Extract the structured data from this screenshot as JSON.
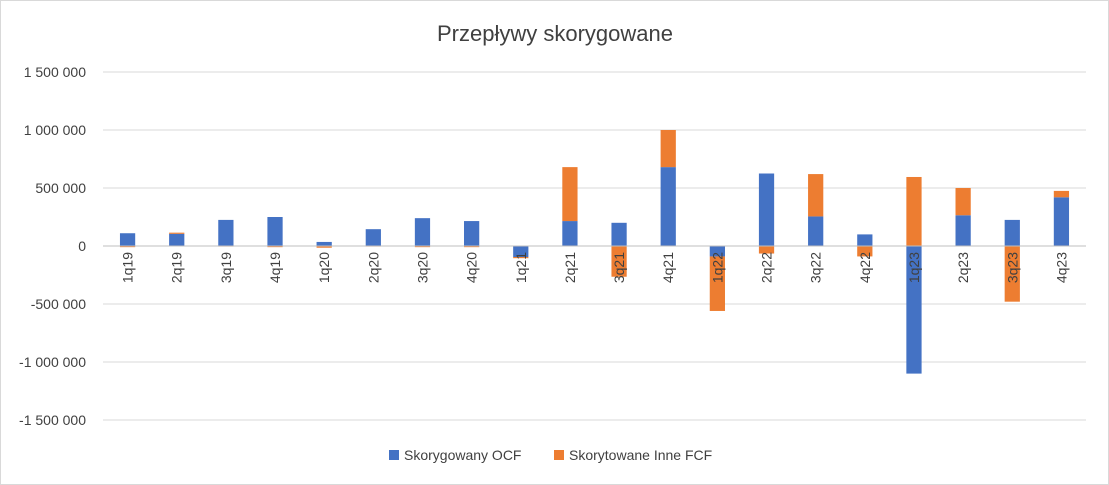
{
  "chart_data": {
    "type": "bar",
    "stacked": true,
    "title": "Przepływy skorygowane",
    "xlabel": "",
    "ylabel": "",
    "ylim": [
      -1500000,
      1500000
    ],
    "yticks": [
      1500000,
      1000000,
      500000,
      0,
      -500000,
      -1000000,
      -1500000
    ],
    "ytick_labels": [
      "1 500 000",
      "1 000 000",
      "500 000",
      "0",
      "-500 000",
      "-1 000 000",
      "-1 500 000"
    ],
    "grid": true,
    "legend_position": "bottom",
    "categories": [
      "1q19",
      "2q19",
      "3q19",
      "4q19",
      "1q20",
      "2q20",
      "3q20",
      "4q20",
      "1q21",
      "2q21",
      "3q21",
      "4q21",
      "1q22",
      "2q22",
      "3q22",
      "4q22",
      "1q23",
      "2q23",
      "3q23",
      "4q23"
    ],
    "series": [
      {
        "name": "Skorygowany OCF",
        "color": "#4472c4",
        "values": [
          110000,
          105000,
          225000,
          250000,
          35000,
          145000,
          240000,
          215000,
          -95000,
          215000,
          200000,
          680000,
          -90000,
          625000,
          255000,
          100000,
          -1100000,
          265000,
          225000,
          420000
        ]
      },
      {
        "name": "Skorytowane Inne FCF",
        "color": "#ed7d31",
        "values": [
          -10000,
          10000,
          -5000,
          -10000,
          -15000,
          -5000,
          -10000,
          -10000,
          -10000,
          465000,
          -265000,
          320000,
          -470000,
          -65000,
          365000,
          -90000,
          595000,
          235000,
          -480000,
          55000
        ]
      }
    ]
  }
}
